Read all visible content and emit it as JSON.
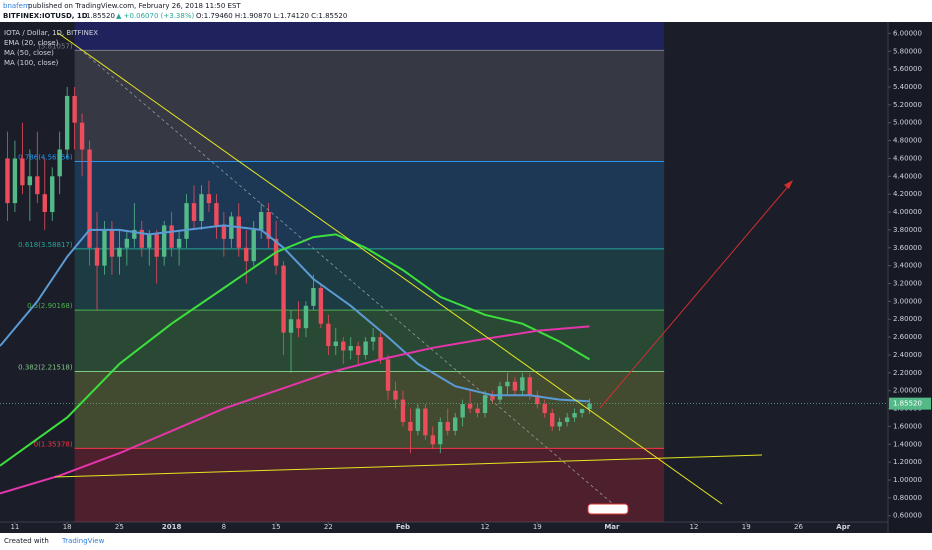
{
  "header": {
    "author": "bnafem",
    "published": "published on TradingView.com, February 26, 2018 11:50 EST",
    "symbol": "BITFINEX:IOTUSD, 1D",
    "price": "1.85520",
    "change": "▲ +0.06070 (+3.38%)",
    "ohlc": "O:1.79460 H:1.90870 L:1.74120 C:1.85520"
  },
  "footer": {
    "created": "Created with",
    "brand": "TradingView"
  },
  "chart_data": {
    "type": "candlestick",
    "grid": false,
    "legend": [
      "IOTA / Dollar, 1D, BITFINEX"
    ],
    "xlim": [
      "2017-12-09",
      "2018-04-07"
    ],
    "ylim": [
      0.53,
      6.15
    ],
    "xticks": [
      {
        "value": "2017-12-11",
        "label": "11"
      },
      {
        "value": "2017-12-18",
        "label": "18"
      },
      {
        "value": "2017-12-25",
        "label": "25"
      },
      {
        "value": "2018-01-01",
        "label": "2018"
      },
      {
        "value": "2018-01-08",
        "label": "8"
      },
      {
        "value": "2018-01-15",
        "label": "15"
      },
      {
        "value": "2018-01-22",
        "label": "22"
      },
      {
        "value": "2018-02-01",
        "label": "Feb"
      },
      {
        "value": "2018-02-12",
        "label": "12"
      },
      {
        "value": "2018-02-19",
        "label": "19"
      },
      {
        "value": "2018-03-01",
        "label": "Mar"
      },
      {
        "value": "2018-03-12",
        "label": "12"
      },
      {
        "value": "2018-03-19",
        "label": "19"
      },
      {
        "value": "2018-03-26",
        "label": "26"
      },
      {
        "value": "2018-04-01",
        "label": "Apr"
      }
    ],
    "yticks": [
      {
        "value": 0.6,
        "label": "0.60000"
      },
      {
        "value": 0.8,
        "label": "0.80000"
      },
      {
        "value": 1.0,
        "label": "1.00000"
      },
      {
        "value": 1.2,
        "label": "1.20000"
      },
      {
        "value": 1.4,
        "label": "1.40000"
      },
      {
        "value": 1.6,
        "label": "1.60000"
      },
      {
        "value": 1.8,
        "label": "1.80000"
      },
      {
        "value": 2.0,
        "label": "2.00000"
      },
      {
        "value": 2.2,
        "label": "2.20000"
      },
      {
        "value": 2.4,
        "label": "2.40000"
      },
      {
        "value": 2.6,
        "label": "2.60000"
      },
      {
        "value": 2.8,
        "label": "2.80000"
      },
      {
        "value": 3.0,
        "label": "3.00000"
      },
      {
        "value": 3.2,
        "label": "3.20000"
      },
      {
        "value": 3.4,
        "label": "3.40000"
      },
      {
        "value": 3.6,
        "label": "3.60000"
      },
      {
        "value": 3.8,
        "label": "3.80000"
      },
      {
        "value": 4.0,
        "label": "4.00000"
      },
      {
        "value": 4.2,
        "label": "4.20000"
      },
      {
        "value": 4.4,
        "label": "4.40000"
      },
      {
        "value": 4.6,
        "label": "4.60000"
      },
      {
        "value": 4.8,
        "label": "4.80000"
      },
      {
        "value": 5.0,
        "label": "5.00000"
      },
      {
        "value": 5.2,
        "label": "5.20000"
      },
      {
        "value": 5.4,
        "label": "5.40000"
      },
      {
        "value": 5.6,
        "label": "5.60000"
      },
      {
        "value": 5.8,
        "label": "5.80000"
      },
      {
        "value": 6.0,
        "label": "6.00000"
      }
    ],
    "last_price": {
      "value": 1.8552,
      "label": "1.85520",
      "color": "#53b987"
    },
    "candles": {
      "up_color": "#53b987",
      "down_color": "#eb4d5c",
      "x": [
        "2017-12-10",
        "2017-12-11",
        "2017-12-12",
        "2017-12-13",
        "2017-12-14",
        "2017-12-15",
        "2017-12-16",
        "2017-12-17",
        "2017-12-18",
        "2017-12-19",
        "2017-12-20",
        "2017-12-21",
        "2017-12-22",
        "2017-12-23",
        "2017-12-24",
        "2017-12-25",
        "2017-12-26",
        "2017-12-27",
        "2017-12-28",
        "2017-12-29",
        "2017-12-30",
        "2017-12-31",
        "2018-01-01",
        "2018-01-02",
        "2018-01-03",
        "2018-01-04",
        "2018-01-05",
        "2018-01-06",
        "2018-01-07",
        "2018-01-08",
        "2018-01-09",
        "2018-01-10",
        "2018-01-11",
        "2018-01-12",
        "2018-01-13",
        "2018-01-14",
        "2018-01-15",
        "2018-01-16",
        "2018-01-17",
        "2018-01-18",
        "2018-01-19",
        "2018-01-20",
        "2018-01-21",
        "2018-01-22",
        "2018-01-23",
        "2018-01-24",
        "2018-01-25",
        "2018-01-26",
        "2018-01-27",
        "2018-01-28",
        "2018-01-29",
        "2018-01-30",
        "2018-01-31",
        "2018-02-01",
        "2018-02-02",
        "2018-02-03",
        "2018-02-04",
        "2018-02-05",
        "2018-02-06",
        "2018-02-07",
        "2018-02-08",
        "2018-02-09",
        "2018-02-10",
        "2018-02-11",
        "2018-02-12",
        "2018-02-13",
        "2018-02-14",
        "2018-02-15",
        "2018-02-16",
        "2018-02-17",
        "2018-02-18",
        "2018-02-19",
        "2018-02-20",
        "2018-02-21",
        "2018-02-22",
        "2018-02-23",
        "2018-02-24",
        "2018-02-25",
        "2018-02-26"
      ],
      "open": [
        4.6,
        4.1,
        4.6,
        4.3,
        4.4,
        4.2,
        4.0,
        4.4,
        4.7,
        5.3,
        5.0,
        4.7,
        3.6,
        3.4,
        3.8,
        3.5,
        3.6,
        3.7,
        3.8,
        3.6,
        3.75,
        3.5,
        3.85,
        3.6,
        3.7,
        4.1,
        3.9,
        4.2,
        4.1,
        3.85,
        3.7,
        3.95,
        3.6,
        3.45,
        3.8,
        4.0,
        3.7,
        3.4,
        2.65,
        2.8,
        2.7,
        2.95,
        3.15,
        2.75,
        2.5,
        2.55,
        2.45,
        2.5,
        2.4,
        2.55,
        2.6,
        2.35,
        2.0,
        1.9,
        1.65,
        1.55,
        1.8,
        1.5,
        1.4,
        1.65,
        1.55,
        1.7,
        1.85,
        1.8,
        1.75,
        1.95,
        1.9,
        2.05,
        2.1,
        2.0,
        2.15,
        1.95,
        1.85,
        1.75,
        1.6,
        1.65,
        1.7,
        1.75,
        1.7946
      ],
      "high": [
        4.9,
        4.8,
        5.0,
        4.7,
        4.9,
        4.6,
        4.5,
        4.9,
        5.4,
        5.4,
        5.1,
        4.8,
        4.0,
        3.9,
        3.9,
        3.8,
        3.8,
        4.1,
        3.9,
        3.8,
        3.8,
        3.9,
        4.0,
        3.8,
        4.2,
        4.3,
        4.3,
        4.35,
        4.2,
        4.0,
        4.0,
        4.1,
        3.8,
        3.9,
        4.1,
        4.1,
        3.9,
        3.45,
        2.9,
        3.0,
        3.0,
        3.3,
        3.2,
        2.85,
        2.7,
        2.6,
        2.6,
        2.55,
        2.6,
        2.7,
        2.65,
        2.4,
        2.1,
        2.0,
        1.8,
        1.85,
        1.85,
        1.6,
        1.7,
        1.8,
        1.75,
        1.9,
        2.0,
        1.85,
        2.0,
        2.0,
        2.1,
        2.2,
        2.15,
        2.2,
        2.2,
        2.0,
        1.9,
        1.8,
        1.7,
        1.75,
        1.8,
        1.8,
        1.9087
      ],
      "low": [
        3.9,
        4.0,
        4.2,
        3.9,
        4.1,
        3.8,
        3.9,
        4.2,
        4.6,
        4.7,
        4.4,
        3.4,
        2.9,
        3.3,
        3.3,
        3.3,
        3.4,
        3.6,
        3.5,
        3.4,
        3.2,
        3.4,
        3.5,
        3.4,
        3.6,
        3.8,
        3.8,
        4.0,
        3.7,
        3.5,
        3.6,
        3.5,
        3.2,
        3.4,
        3.7,
        3.6,
        3.3,
        2.4,
        2.2,
        2.6,
        2.6,
        2.9,
        2.7,
        2.4,
        2.4,
        2.3,
        2.35,
        2.3,
        2.35,
        2.45,
        2.3,
        1.9,
        1.8,
        1.6,
        1.3,
        1.5,
        1.45,
        1.35,
        1.3,
        1.5,
        1.5,
        1.6,
        1.75,
        1.7,
        1.7,
        1.85,
        1.85,
        1.95,
        1.95,
        1.95,
        1.9,
        1.8,
        1.7,
        1.55,
        1.55,
        1.6,
        1.65,
        1.7,
        1.7412
      ],
      "close": [
        4.1,
        4.6,
        4.3,
        4.4,
        4.2,
        4.0,
        4.4,
        4.7,
        5.3,
        5.0,
        4.7,
        3.6,
        3.4,
        3.8,
        3.5,
        3.6,
        3.7,
        3.8,
        3.6,
        3.75,
        3.5,
        3.85,
        3.6,
        3.7,
        4.1,
        3.9,
        4.2,
        4.1,
        3.85,
        3.7,
        3.95,
        3.6,
        3.45,
        3.8,
        4.0,
        3.7,
        3.4,
        2.65,
        2.8,
        2.7,
        2.95,
        3.15,
        2.75,
        2.5,
        2.55,
        2.45,
        2.5,
        2.4,
        2.55,
        2.6,
        2.35,
        2.0,
        1.9,
        1.65,
        1.55,
        1.8,
        1.5,
        1.4,
        1.65,
        1.55,
        1.7,
        1.85,
        1.8,
        1.75,
        1.95,
        1.9,
        2.05,
        2.1,
        2.0,
        2.15,
        1.95,
        1.85,
        1.75,
        1.6,
        1.65,
        1.7,
        1.75,
        1.7946,
        1.8552
      ]
    },
    "series": [
      {
        "name": "EMA (20, close)",
        "color": "#5b9bd5",
        "x": [
          "2017-12-09",
          "2017-12-14",
          "2017-12-18",
          "2017-12-21",
          "2017-12-25",
          "2017-12-29",
          "2018-01-03",
          "2018-01-08",
          "2018-01-13",
          "2018-01-16",
          "2018-01-20",
          "2018-01-25",
          "2018-01-30",
          "2018-02-03",
          "2018-02-08",
          "2018-02-13",
          "2018-02-18",
          "2018-02-22",
          "2018-02-26"
        ],
        "values": [
          2.5,
          3.0,
          3.5,
          3.8,
          3.8,
          3.75,
          3.8,
          3.85,
          3.8,
          3.6,
          3.25,
          2.95,
          2.6,
          2.3,
          2.05,
          1.95,
          1.95,
          1.9,
          1.88
        ]
      },
      {
        "name": "MA (50, close)",
        "color": "#3ce03c",
        "x": [
          "2017-12-09",
          "2017-12-18",
          "2017-12-25",
          "2018-01-01",
          "2018-01-08",
          "2018-01-15",
          "2018-01-20",
          "2018-01-23",
          "2018-01-27",
          "2018-02-01",
          "2018-02-06",
          "2018-02-12",
          "2018-02-17",
          "2018-02-22",
          "2018-02-26"
        ],
        "values": [
          1.16,
          1.7,
          2.3,
          2.75,
          3.15,
          3.55,
          3.72,
          3.75,
          3.6,
          3.35,
          3.05,
          2.85,
          2.75,
          2.55,
          2.35
        ]
      },
      {
        "name": "MA (100, close)",
        "color": "#e535ab",
        "x": [
          "2017-12-09",
          "2017-12-17",
          "2017-12-25",
          "2018-01-01",
          "2018-01-08",
          "2018-01-15",
          "2018-01-22",
          "2018-01-29",
          "2018-02-05",
          "2018-02-12",
          "2018-02-19",
          "2018-02-26"
        ],
        "values": [
          0.85,
          1.05,
          1.3,
          1.55,
          1.8,
          2.0,
          2.2,
          2.35,
          2.48,
          2.58,
          2.67,
          2.72
        ]
      }
    ],
    "fib": {
      "x": [
        "2017-12-19",
        "2018-03-08"
      ],
      "levels": [
        {
          "value": 5.81057,
          "label": "(5.81057)",
          "color": "#787b86",
          "fill": "rgba(120,123,134,0.30)"
        },
        {
          "value": 4.56556,
          "label": "0.786(4.56556)",
          "color": "#2196f3",
          "fill": "rgba(33,150,243,0.22)"
        },
        {
          "value": 3.58817,
          "label": "0.618(3.58817)",
          "color": "#26a69a",
          "fill": "rgba(38,166,154,0.22)"
        },
        {
          "value": 2.90168,
          "label": "0.5(2.90168)",
          "color": "#4caf50",
          "fill": "rgba(76,175,80,0.30)"
        },
        {
          "value": 2.21518,
          "label": "0.382(2.21518)",
          "color": "#81c784",
          "fill": "rgba(170,190,70,0.28)"
        },
        {
          "value": 1.35378,
          "label": "0(1.35378)",
          "color": "#f23645",
          "fill": "rgba(200,40,60,0.30)"
        }
      ]
    }
  }
}
